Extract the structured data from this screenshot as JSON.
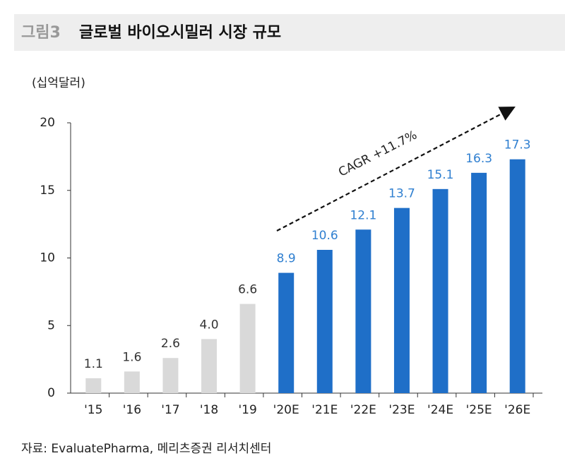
{
  "chart_data": {
    "type": "bar",
    "figure_label": "그림3",
    "title": "글로벌 바이오시밀러 시장 규모",
    "y_label": "(십억달러)",
    "categories": [
      "'15",
      "'16",
      "'17",
      "'18",
      "'19",
      "'20E",
      "'21E",
      "'22E",
      "'23E",
      "'24E",
      "'25E",
      "'26E"
    ],
    "values": [
      1.1,
      1.6,
      2.6,
      4,
      6.6,
      8.9,
      10.6,
      12.1,
      13.7,
      15.1,
      16.3,
      17.3
    ],
    "value_labels": [
      "1.1",
      "1.6",
      "2.6",
      "4.0",
      "6.6",
      "8.9",
      "10.6",
      "12.1",
      "13.7",
      "15.1",
      "16.3",
      "17.3"
    ],
    "colors": [
      "#d9d9d9",
      "#d9d9d9",
      "#d9d9d9",
      "#d9d9d9",
      "#d9d9d9",
      "#1f6fc8",
      "#1f6fc8",
      "#1f6fc8",
      "#1f6fc8",
      "#1f6fc8",
      "#1f6fc8",
      "#1f6fc8"
    ],
    "label_colors": [
      "#333333",
      "#333333",
      "#333333",
      "#333333",
      "#333333",
      "#2f7fd0",
      "#2f7fd0",
      "#2f7fd0",
      "#2f7fd0",
      "#2f7fd0",
      "#2f7fd0",
      "#2f7fd0"
    ],
    "ylim": [
      0,
      20
    ],
    "yticks": [
      0,
      5,
      10,
      15,
      20
    ],
    "grid": false,
    "annotation": "CAGR +11.7%",
    "source": "자료: EvaluatePharma, 메리츠증권 리서치센터"
  }
}
